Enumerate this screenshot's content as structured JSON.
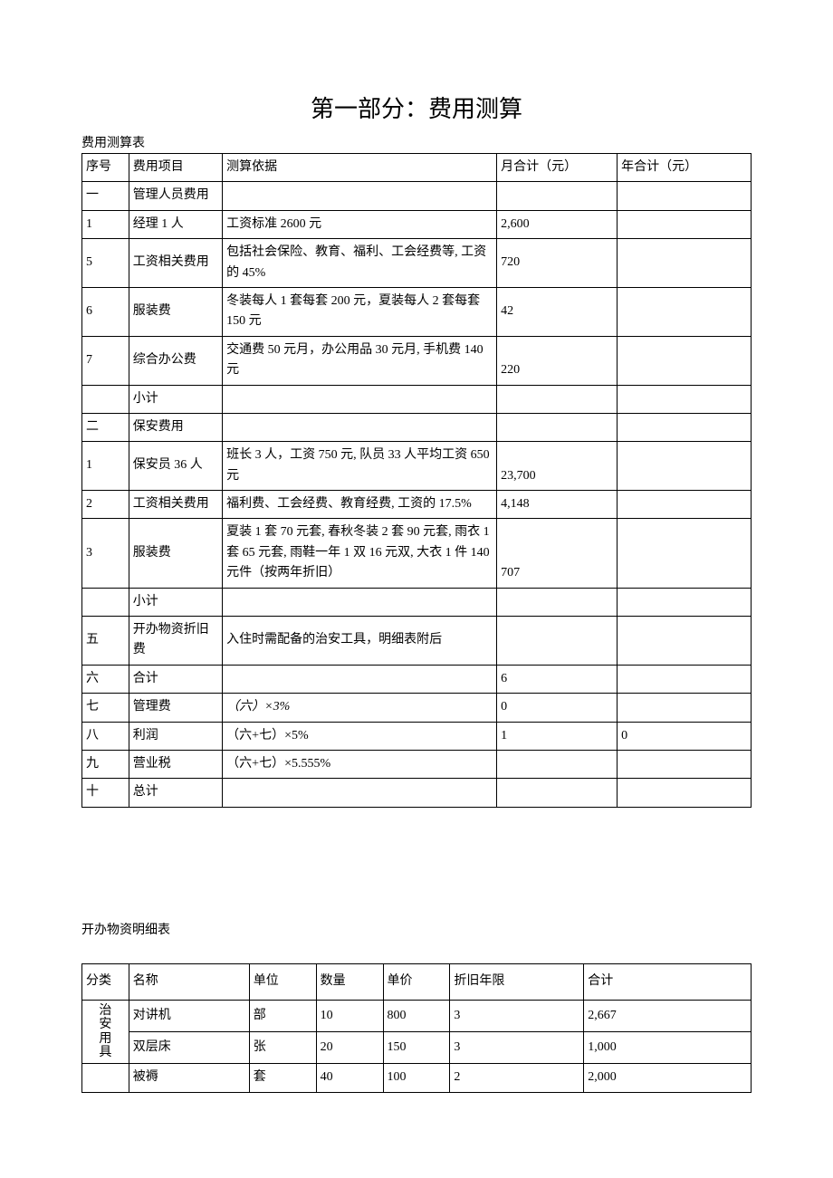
{
  "title": "第一部分：费用测算",
  "table1": {
    "caption": "费用测算表",
    "headers": {
      "seq": "序号",
      "item": "费用项目",
      "basis": "测算依据",
      "monthly": "月合计（元）",
      "yearly": "年合计（元）"
    },
    "rows": [
      {
        "seq": "一",
        "item": "管理人员费用",
        "basis": "",
        "monthly": "",
        "yearly": ""
      },
      {
        "seq": "1",
        "item": "经理 1 人",
        "basis": "工资标准 2600 元",
        "monthly": "2,600",
        "yearly": ""
      },
      {
        "seq": "5",
        "item": "工资相关费用",
        "basis": "包括社会保险、教育、福利、工会经费等, 工资的 45%",
        "monthly": "720",
        "yearly": ""
      },
      {
        "seq": "6",
        "item": "服装费",
        "basis": "冬装每人 1 套每套 200 元，夏装每人 2 套每套 150 元",
        "monthly": "42",
        "yearly": ""
      },
      {
        "seq": "7",
        "item": "综合办公费",
        "basis": "交通费 50 元月，办公用品 30 元月, 手机费 140 元",
        "monthly": "220",
        "yearly": "",
        "mvalign": "bottom"
      },
      {
        "seq": "",
        "item": "小计",
        "basis": "",
        "monthly": "",
        "yearly": ""
      },
      {
        "seq": "二",
        "item": "保安费用",
        "basis": "",
        "monthly": "",
        "yearly": ""
      },
      {
        "seq": "1",
        "item": "保安员 36 人",
        "basis": "班长 3 人，工资 750 元, 队员 33 人平均工资 650 元",
        "monthly": "23,700",
        "yearly": "",
        "mvalign": "bottom"
      },
      {
        "seq": "2",
        "item": "工资相关费用",
        "basis": "福利费、工会经费、教育经费, 工资的 17.5%",
        "monthly": "4,148",
        "yearly": "",
        "bvalign": "bottom",
        "mvalign": "bottom"
      },
      {
        "seq": "3",
        "item": "服装费",
        "basis": "夏装 1 套 70 元套, 春秋冬装 2 套 90 元套, 雨衣 1 套 65 元套, 雨鞋一年 1 双 16 元双, 大衣 1 件 140 元件（按两年折旧）",
        "monthly": "707",
        "yearly": "",
        "mvalign": "bottom"
      },
      {
        "seq": "",
        "item": "小计",
        "basis": "",
        "monthly": "",
        "yearly": ""
      },
      {
        "seq": "五",
        "item": "开办物资折旧费",
        "basis": "入住时需配备的治安工具，明细表附后",
        "monthly": "",
        "yearly": ""
      },
      {
        "seq": "六",
        "item": "合计",
        "basis": "",
        "monthly": "6",
        "yearly": ""
      },
      {
        "seq": "七",
        "item": "管理费",
        "basis": "（六）×3%",
        "monthly": "0",
        "yearly": "",
        "italic": true
      },
      {
        "seq": "八",
        "item": "利润",
        "basis": "（六+七）×5%",
        "monthly": "1",
        "yearly": "0"
      },
      {
        "seq": "九",
        "item": "营业税",
        "basis": "（六+七）×5.555%",
        "monthly": "",
        "yearly": ""
      },
      {
        "seq": "十",
        "item": "总计",
        "basis": "",
        "monthly": "",
        "yearly": ""
      }
    ]
  },
  "table2": {
    "caption": "开办物资明细表",
    "headers": {
      "cat": "分类",
      "name": "名称",
      "unit": "单位",
      "qty": "数量",
      "price": "单价",
      "years": "折旧年限",
      "total": "合计"
    },
    "catlabel": "治安用具",
    "rows": [
      {
        "name": "对讲机",
        "unit": "部",
        "qty": "10",
        "price": "800",
        "years": "3",
        "total": "2,667"
      },
      {
        "name": "双层床",
        "unit": "张",
        "qty": "20",
        "price": "150",
        "years": "3",
        "total": "1,000"
      },
      {
        "name": "被褥",
        "unit": "套",
        "qty": "40",
        "price": "100",
        "years": "2",
        "total": "2,000"
      }
    ]
  }
}
